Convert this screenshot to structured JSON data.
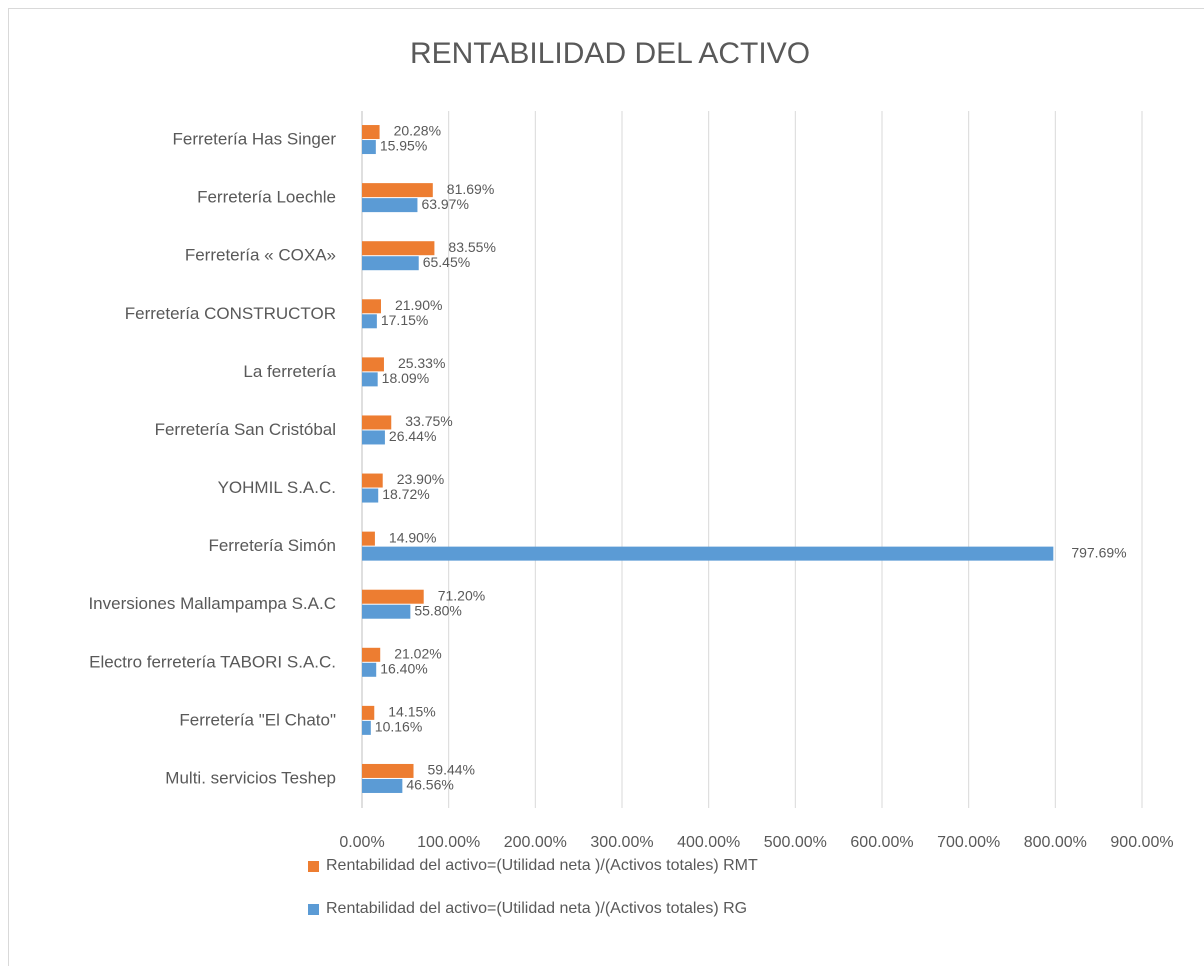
{
  "chart_data": {
    "type": "hbar",
    "title": "RENTABILIDAD DEL ACTIVO",
    "categories": [
      "Ferretería Has Singer",
      "Ferretería Loechle",
      "Ferretería « COXA»",
      "Ferretería CONSTRUCTOR",
      "La ferretería",
      "Ferretería San Cristóbal",
      "YOHMIL S.A.C.",
      "Ferretería Simón",
      "Inversiones Mallampampa S.A.C",
      "Electro ferretería TABORI S.A.C.",
      "Ferretería \"El Chato\"",
      "Multi. servicios Teshep"
    ],
    "series": [
      {
        "name": "Rentabilidad del activo=(Utilidad neta )/(Activos totales) RMT",
        "color": "#ed7d31",
        "values": [
          20.28,
          81.69,
          83.55,
          21.9,
          25.33,
          33.75,
          23.9,
          14.9,
          71.2,
          21.02,
          14.15,
          59.44
        ],
        "value_labels": [
          "20.28%",
          "81.69%",
          "83.55%",
          "21.90%",
          "25.33%",
          "33.75%",
          "23.90%",
          "14.90%",
          "71.20%",
          "21.02%",
          "14.15%",
          "59.44%"
        ]
      },
      {
        "name": "Rentabilidad del activo=(Utilidad neta )/(Activos totales) RG",
        "color": "#5b9bd5",
        "values": [
          15.95,
          63.97,
          65.45,
          17.15,
          18.09,
          26.44,
          18.72,
          797.69,
          55.8,
          16.4,
          10.16,
          46.56
        ],
        "value_labels": [
          "15.95%",
          "63.97%",
          "65.45%",
          "17.15%",
          "18.09%",
          "26.44%",
          "18.72%",
          "797.69%",
          "55.80%",
          "16.40%",
          "10.16%",
          "46.56%"
        ]
      }
    ],
    "xlim": [
      0,
      900
    ],
    "xticks": [
      {
        "value": 0,
        "label": "0.00%"
      },
      {
        "value": 100,
        "label": "100.00%"
      },
      {
        "value": 200,
        "label": "200.00%"
      },
      {
        "value": 300,
        "label": "300.00%"
      },
      {
        "value": 400,
        "label": "400.00%"
      },
      {
        "value": 500,
        "label": "500.00%"
      },
      {
        "value": 600,
        "label": "600.00%"
      },
      {
        "value": 700,
        "label": "700.00%"
      },
      {
        "value": 800,
        "label": "800.00%"
      },
      {
        "value": 900,
        "label": "900.00%"
      }
    ],
    "grid": true,
    "legend": "bottom"
  }
}
